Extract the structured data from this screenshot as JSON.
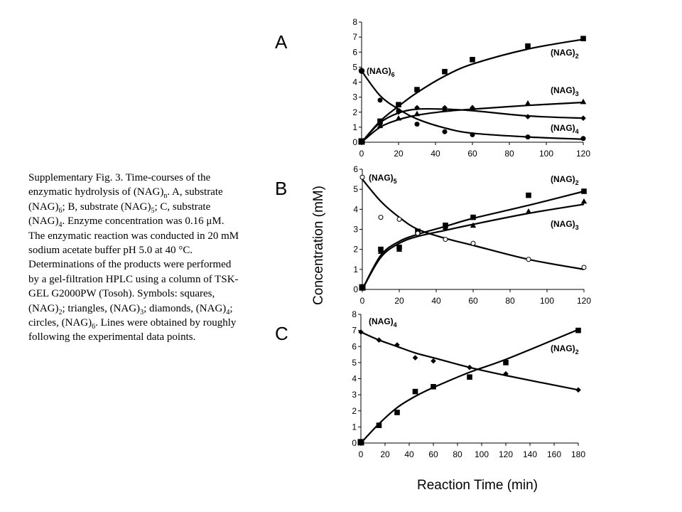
{
  "caption": {
    "parts": [
      {
        "t": "Supplementary Fig. 3. Time-courses of the enzymatic hydrolysis of (NAG)"
      },
      {
        "sub": "n"
      },
      {
        "t": ". A, substrate (NAG)"
      },
      {
        "sub": "6"
      },
      {
        "t": "; B, substrate (NAG)"
      },
      {
        "sub": "5"
      },
      {
        "t": "; C, substrate (NAG)"
      },
      {
        "sub": "4"
      },
      {
        "t": ". Enzyme concentration was 0.16 μM. The enzymatic reaction was conducted in 20 mM sodium acetate buffer pH 5.0 at 40 °C. Determinations of the products were performed by a gel-filtration HPLC using a column of TSK-GEL G2000PW (Tosoh).  Symbols: squares, (NAG)"
      },
      {
        "sub": "2"
      },
      {
        "t": "; triangles, (NAG)"
      },
      {
        "sub": "3"
      },
      {
        "t": "; diamonds, (NAG)"
      },
      {
        "sub": "4"
      },
      {
        "t": "; circles, (NAG)"
      },
      {
        "sub": "6"
      },
      {
        "t": ". Lines were obtained by roughly following the experimental data points."
      }
    ]
  },
  "shared": {
    "ylabel": "Concentration (mM)",
    "xlabel": "Reaction Time (min)"
  },
  "chart_data": [
    {
      "panel": "A",
      "type": "scatter",
      "xlim": [
        0,
        120
      ],
      "ylim": [
        0,
        8
      ],
      "xticks": [
        0,
        20,
        40,
        60,
        80,
        100,
        120
      ],
      "yticks": [
        0,
        1,
        2,
        3,
        4,
        5,
        6,
        7,
        8
      ],
      "series": [
        {
          "name": "(NAG)2",
          "base": "(NAG)",
          "sub": "2",
          "marker": "square",
          "x": [
            0,
            10,
            20,
            30,
            45,
            60,
            90,
            120
          ],
          "y": [
            0.05,
            1.4,
            2.5,
            3.5,
            4.7,
            5.5,
            6.4,
            6.9
          ],
          "curve": [
            [
              0,
              0
            ],
            [
              10,
              1.4
            ],
            [
              20,
              2.4
            ],
            [
              30,
              3.3
            ],
            [
              45,
              4.4
            ],
            [
              60,
              5.2
            ],
            [
              90,
              6.2
            ],
            [
              120,
              6.85
            ]
          ]
        },
        {
          "name": "(NAG)3",
          "base": "(NAG)",
          "sub": "3",
          "marker": "triangle",
          "x": [
            0,
            10,
            20,
            30,
            45,
            60,
            90,
            120
          ],
          "y": [
            0.05,
            1.1,
            1.6,
            1.9,
            2.2,
            2.3,
            2.6,
            2.7
          ],
          "curve": [
            [
              0,
              0
            ],
            [
              10,
              1.0
            ],
            [
              20,
              1.5
            ],
            [
              30,
              1.8
            ],
            [
              45,
              2.05
            ],
            [
              60,
              2.2
            ],
            [
              90,
              2.45
            ],
            [
              120,
              2.65
            ]
          ]
        },
        {
          "name": "(NAG)4",
          "base": "(NAG)",
          "sub": "4",
          "marker": "diamond",
          "x": [
            0,
            10,
            20,
            30,
            45,
            60,
            90,
            120
          ],
          "y": [
            0.05,
            1.2,
            2.0,
            2.3,
            2.3,
            2.3,
            1.7,
            1.6
          ],
          "curve": [
            [
              0,
              0
            ],
            [
              10,
              1.3
            ],
            [
              20,
              1.95
            ],
            [
              30,
              2.2
            ],
            [
              45,
              2.2
            ],
            [
              60,
              2.1
            ],
            [
              90,
              1.75
            ],
            [
              120,
              1.6
            ]
          ]
        },
        {
          "name": "(NAG)6",
          "base": "(NAG)",
          "sub": "6",
          "marker": "circle",
          "x": [
            0,
            10,
            20,
            30,
            45,
            60,
            90,
            120
          ],
          "y": [
            4.75,
            2.8,
            2.1,
            1.2,
            0.7,
            0.5,
            0.35,
            0.25
          ],
          "curve": [
            [
              0,
              4.75
            ],
            [
              10,
              3.1
            ],
            [
              20,
              2.2
            ],
            [
              30,
              1.55
            ],
            [
              45,
              0.95
            ],
            [
              60,
              0.6
            ],
            [
              90,
              0.35
            ],
            [
              120,
              0.2
            ]
          ]
        }
      ]
    },
    {
      "panel": "B",
      "type": "scatter",
      "xlim": [
        0,
        120
      ],
      "ylim": [
        0,
        6
      ],
      "xticks": [
        0,
        20,
        40,
        60,
        80,
        100,
        120
      ],
      "yticks": [
        0,
        1,
        2,
        3,
        4,
        5,
        6
      ],
      "series": [
        {
          "name": "(NAG)2",
          "base": "(NAG)",
          "sub": "2",
          "marker": "square",
          "x": [
            0,
            10,
            20,
            30,
            45,
            60,
            90,
            120
          ],
          "y": [
            0.1,
            2.0,
            2.1,
            2.9,
            3.2,
            3.6,
            4.7,
            4.9
          ],
          "curve": [
            [
              0,
              0
            ],
            [
              10,
              1.7
            ],
            [
              20,
              2.4
            ],
            [
              30,
              2.75
            ],
            [
              45,
              3.15
            ],
            [
              60,
              3.55
            ],
            [
              90,
              4.2
            ],
            [
              120,
              4.9
            ]
          ]
        },
        {
          "name": "(NAG)3",
          "base": "(NAG)",
          "sub": "3",
          "marker": "triangle",
          "x": [
            0,
            10,
            20,
            30,
            45,
            60,
            90,
            120
          ],
          "y": [
            0.1,
            1.9,
            2.0,
            2.8,
            3.1,
            3.2,
            3.9,
            4.4
          ],
          "curve": [
            [
              0,
              0
            ],
            [
              10,
              1.6
            ],
            [
              20,
              2.3
            ],
            [
              30,
              2.65
            ],
            [
              45,
              2.95
            ],
            [
              60,
              3.25
            ],
            [
              90,
              3.8
            ],
            [
              120,
              4.25
            ]
          ]
        },
        {
          "name": "(NAG)5",
          "base": "(NAG)",
          "sub": "5",
          "marker": "circle-open",
          "x": [
            0,
            10,
            20,
            30,
            45,
            60,
            90,
            120
          ],
          "y": [
            5.6,
            3.6,
            3.5,
            2.8,
            2.5,
            2.3,
            1.5,
            1.1
          ],
          "curve": [
            [
              0,
              5.5
            ],
            [
              10,
              4.4
            ],
            [
              20,
              3.6
            ],
            [
              30,
              3.0
            ],
            [
              45,
              2.55
            ],
            [
              60,
              2.2
            ],
            [
              90,
              1.5
            ],
            [
              120,
              1.0
            ]
          ]
        }
      ]
    },
    {
      "panel": "C",
      "type": "scatter",
      "xlim": [
        0,
        180
      ],
      "ylim": [
        0,
        8
      ],
      "xticks": [
        0,
        20,
        40,
        60,
        80,
        100,
        120,
        140,
        160,
        180
      ],
      "yticks": [
        0,
        1,
        2,
        3,
        4,
        5,
        6,
        7,
        8
      ],
      "series": [
        {
          "name": "(NAG)2",
          "base": "(NAG)",
          "sub": "2",
          "marker": "square",
          "x": [
            0,
            15,
            30,
            45,
            60,
            90,
            120,
            180
          ],
          "y": [
            0.05,
            1.1,
            1.9,
            3.2,
            3.5,
            4.1,
            5.0,
            7.0
          ],
          "curve": [
            [
              0,
              0
            ],
            [
              15,
              1.2
            ],
            [
              30,
              2.2
            ],
            [
              45,
              2.9
            ],
            [
              60,
              3.45
            ],
            [
              90,
              4.4
            ],
            [
              120,
              5.2
            ],
            [
              180,
              7.05
            ]
          ]
        },
        {
          "name": "(NAG)4",
          "base": "(NAG)",
          "sub": "4",
          "marker": "diamond",
          "x": [
            0,
            15,
            30,
            45,
            60,
            90,
            120,
            180
          ],
          "y": [
            6.9,
            6.4,
            6.1,
            5.3,
            5.1,
            4.7,
            4.3,
            3.3
          ],
          "curve": [
            [
              0,
              6.9
            ],
            [
              15,
              6.4
            ],
            [
              30,
              6.0
            ],
            [
              45,
              5.6
            ],
            [
              60,
              5.3
            ],
            [
              90,
              4.7
            ],
            [
              120,
              4.2
            ],
            [
              180,
              3.3
            ]
          ]
        }
      ]
    }
  ]
}
